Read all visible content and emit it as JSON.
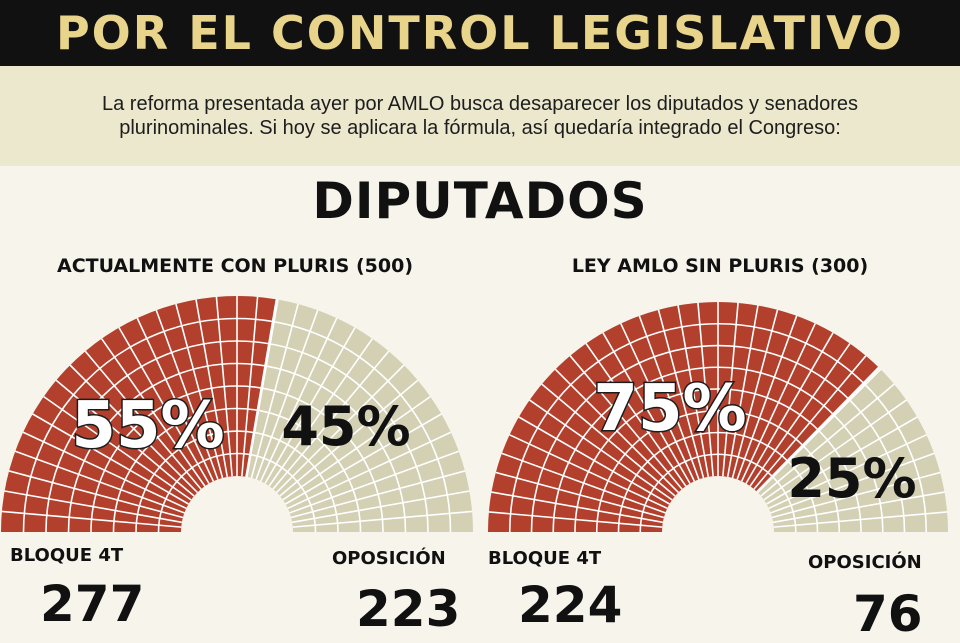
{
  "header": {
    "title": "POR EL CONTROL LEGISLATIVO"
  },
  "intro": {
    "text": "La reforma presentada ayer por AMLO busca desaparecer los diputados y senadores plurinominales. Si hoy se aplicara la fórmula, así quedaría integrado el Congreso:"
  },
  "section_title": "DIPUTADOS",
  "colors": {
    "bloque": "#b2402d",
    "oposicion": "#d3d0b4",
    "grid": "#ffffff"
  },
  "chart_data": [
    {
      "type": "pie",
      "title": "ACTUALMENTE CON PLURIS (500)",
      "categories": [
        "BLOQUE 4T",
        "OPOSICIÓN"
      ],
      "values": [
        277,
        223
      ],
      "percent_labels": [
        "55%",
        "45%"
      ],
      "total": 500
    },
    {
      "type": "pie",
      "title": "LEY AMLO SIN PLURIS (300)",
      "categories": [
        "BLOQUE 4T",
        "OPOSICIÓN"
      ],
      "values": [
        224,
        76
      ],
      "percent_labels": [
        "75%",
        "25%"
      ],
      "total": 300
    }
  ],
  "labels": {
    "left": {
      "bloque_label": "BLOQUE 4T",
      "bloque_value": "277",
      "oposicion_label": "OPOSICIÓN",
      "oposicion_value": "223"
    },
    "right": {
      "bloque_label": "BLOQUE 4T",
      "bloque_value": "224",
      "oposicion_label": "OPOSICIÓN",
      "oposicion_value": "76"
    }
  }
}
